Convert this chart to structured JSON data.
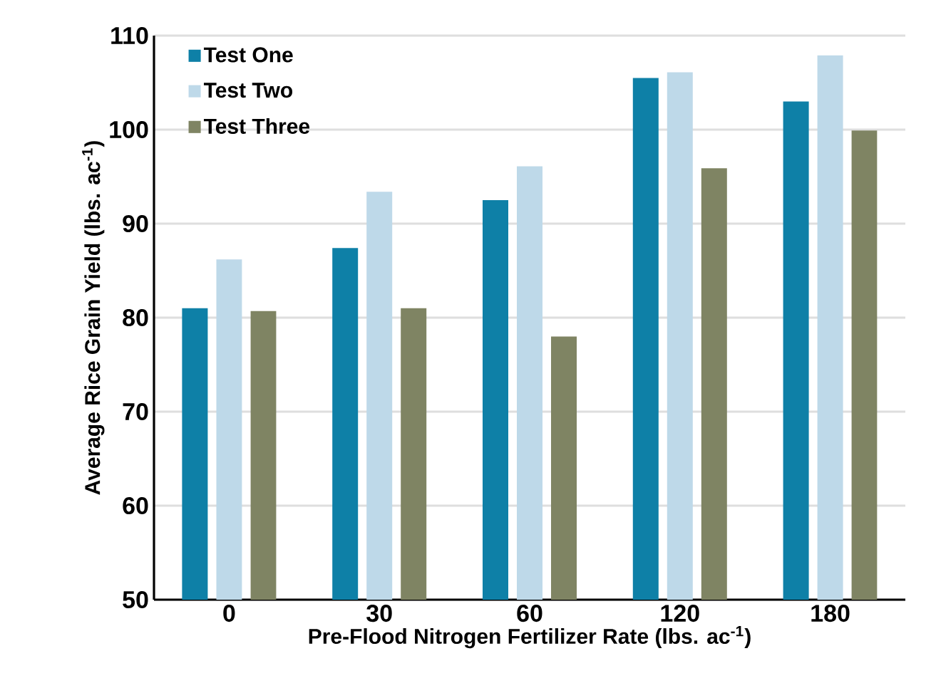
{
  "chart_data": {
    "type": "bar",
    "xlabel": "Pre-Flood Nitrogen Fertilizer Rate (lbs. ac$^{-1}$)",
    "ylabel": "Average Rice Grain Yield (lbs. ac$^{-1}$)",
    "categories": [
      "0",
      "30",
      "60",
      "120",
      "180"
    ],
    "series": [
      {
        "name": "Test One",
        "color": "#0e80a7",
        "values": [
          81.0,
          87.4,
          92.5,
          105.5,
          103.0
        ]
      },
      {
        "name": "Test Two",
        "color": "#bed9e9",
        "values": [
          86.2,
          93.4,
          96.1,
          106.1,
          107.9
        ]
      },
      {
        "name": "Test Three",
        "color": "#7f8463",
        "values": [
          80.7,
          81.0,
          78.0,
          95.9,
          99.9
        ]
      }
    ],
    "ylim": [
      50,
      110
    ],
    "yticks": [
      50,
      60,
      70,
      80,
      90,
      100,
      110
    ],
    "grid": "y",
    "legend": "top left"
  }
}
